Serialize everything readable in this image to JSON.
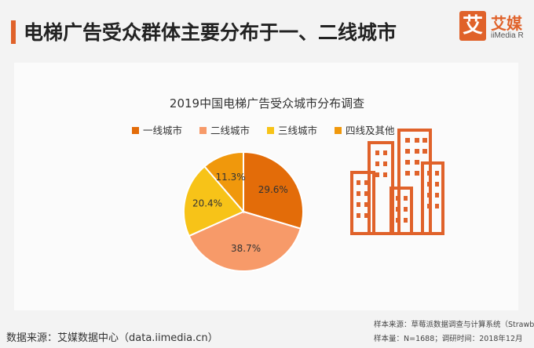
{
  "header": {
    "title": "电梯广告受众群体主要分布于一、二线城市",
    "logo_mark": "艾",
    "logo_cn": "艾媒",
    "logo_en": "iiMedia R"
  },
  "footer": {
    "source": "数据来源：艾媒数据中心（data.iimedia.cn）",
    "sample_source": "样本来源：草莓派数据调查与计算系统（Strawb",
    "sample_size": "样本量：N=1688；调研时间：2018年12月"
  },
  "colors": {
    "accent": "#e0622a",
    "background": "#f3f3f3",
    "building": "#e0622a"
  },
  "chart_data": {
    "type": "pie",
    "title": "2019中国电梯广告受众城市分布调查",
    "legend_position": "top",
    "series": [
      {
        "name": "一线城市",
        "value": 29.6,
        "label": "29.6%",
        "color": "#e36c09"
      },
      {
        "name": "二线城市",
        "value": 38.7,
        "label": "38.7%",
        "color": "#f79a69"
      },
      {
        "name": "三线城市",
        "value": 20.4,
        "label": "20.4%",
        "color": "#f7c318"
      },
      {
        "name": "四线及其他",
        "value": 11.3,
        "label": "11.3%",
        "color": "#f0980c"
      }
    ]
  }
}
